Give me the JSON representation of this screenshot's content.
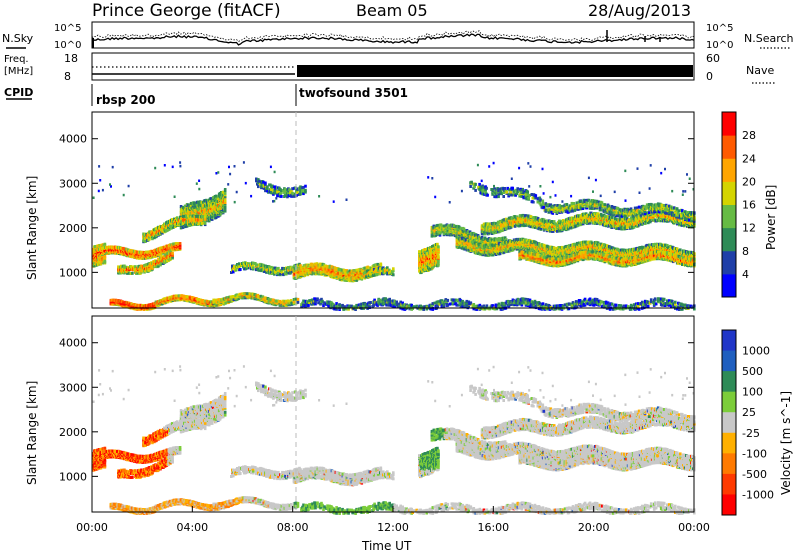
{
  "header": {
    "station": "Prince George (fitACF)",
    "beam": "Beam 05",
    "date": "28/Aug/2013"
  },
  "summary_panels": {
    "nsky": {
      "left_label": "N.Sky",
      "left_ticks": [
        "10^5",
        "10^0"
      ],
      "right_label": "N.Search",
      "right_ticks": [
        "10^5",
        "10^0"
      ]
    },
    "freq": {
      "left_label_line1": "Freq.",
      "left_label_line2": "[MHz]",
      "left_ticks": [
        "18",
        "8"
      ],
      "right_label": "Nave",
      "right_ticks": [
        "60",
        "0"
      ]
    },
    "cpid": {
      "label": "CPID",
      "programs": [
        {
          "name": "rbsp 200",
          "start_hour": 0
        },
        {
          "name": "twofsound 3501",
          "start_hour": 8.25
        }
      ]
    }
  },
  "chart_data": [
    {
      "type": "heatmap",
      "name": "power",
      "ylabel": "Slant Range [km]",
      "y_ticks": [
        1000,
        2000,
        3000,
        4000
      ],
      "ylim": [
        200,
        4600
      ],
      "xlim": [
        0,
        24
      ],
      "colorbar_label": "Power [dB]",
      "colorbar_ticks": [
        "4",
        "8",
        "12",
        "16",
        "20",
        "24",
        "28"
      ],
      "colorbar_range": [
        0,
        30
      ],
      "colors": [
        "#0000ff",
        "#1f3fa8",
        "#2e8b57",
        "#66bb44",
        "#d4d400",
        "#ffa500",
        "#ff5a00",
        "#ff0000"
      ]
    },
    {
      "type": "heatmap",
      "name": "velocity",
      "ylabel": "Slant Range [km]",
      "y_ticks": [
        1000,
        2000,
        3000,
        4000
      ],
      "ylim": [
        200,
        4600
      ],
      "xlim": [
        0,
        24
      ],
      "xlabel": "Time UT",
      "x_ticks": [
        "00:00",
        "04:00",
        "08:00",
        "12:00",
        "16:00",
        "20:00",
        "00:00"
      ],
      "colorbar_label": "Velocity [m s^-1]",
      "colorbar_ticks": [
        "1000",
        "500",
        "100",
        "25",
        "-25",
        "-100",
        "-500",
        "-1000"
      ],
      "colors": [
        "#2036c8",
        "#1f5fbf",
        "#2e8b57",
        "#7ccd3a",
        "#c8c8c8",
        "#ffb000",
        "#ff7a00",
        "#ff3a00",
        "#ff0000"
      ]
    }
  ]
}
